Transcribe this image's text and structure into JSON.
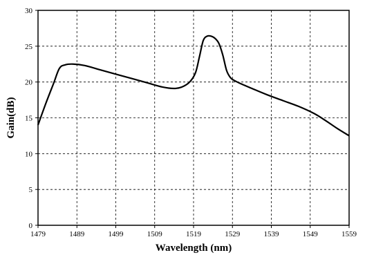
{
  "chart_data": {
    "type": "line",
    "title": "",
    "xlabel": "Wavelength (nm)",
    "ylabel": "Gain(dB)",
    "xlim": [
      1479,
      1559
    ],
    "ylim": [
      0,
      30
    ],
    "xticks": [
      "1479",
      "1489",
      "1499",
      "1509",
      "1519",
      "1529",
      "1539",
      "1549",
      "1559"
    ],
    "yticks": [
      "0",
      "5",
      "10",
      "15",
      "20",
      "25",
      "30"
    ],
    "grid": true,
    "series": [
      {
        "color": "#000000",
        "x": [
          1479,
          1481,
          1483,
          1484.5,
          1486,
          1488,
          1491,
          1495,
          1499,
          1503,
          1507,
          1511,
          1514,
          1516,
          1518,
          1519.5,
          1520.5,
          1521.5,
          1522.5,
          1523.5,
          1524.5,
          1525.5,
          1526.5,
          1527.5,
          1528.5,
          1529.5,
          1531,
          1534,
          1538,
          1542,
          1546,
          1550,
          1553,
          1556,
          1559
        ],
        "y": [
          14.0,
          17.0,
          19.8,
          21.9,
          22.4,
          22.5,
          22.3,
          21.7,
          21.1,
          20.5,
          19.9,
          19.3,
          19.1,
          19.3,
          20.0,
          21.3,
          23.5,
          25.8,
          26.4,
          26.4,
          26.1,
          25.4,
          23.8,
          21.6,
          20.6,
          20.2,
          19.8,
          19.1,
          18.2,
          17.4,
          16.6,
          15.6,
          14.6,
          13.5,
          12.5
        ]
      }
    ]
  }
}
